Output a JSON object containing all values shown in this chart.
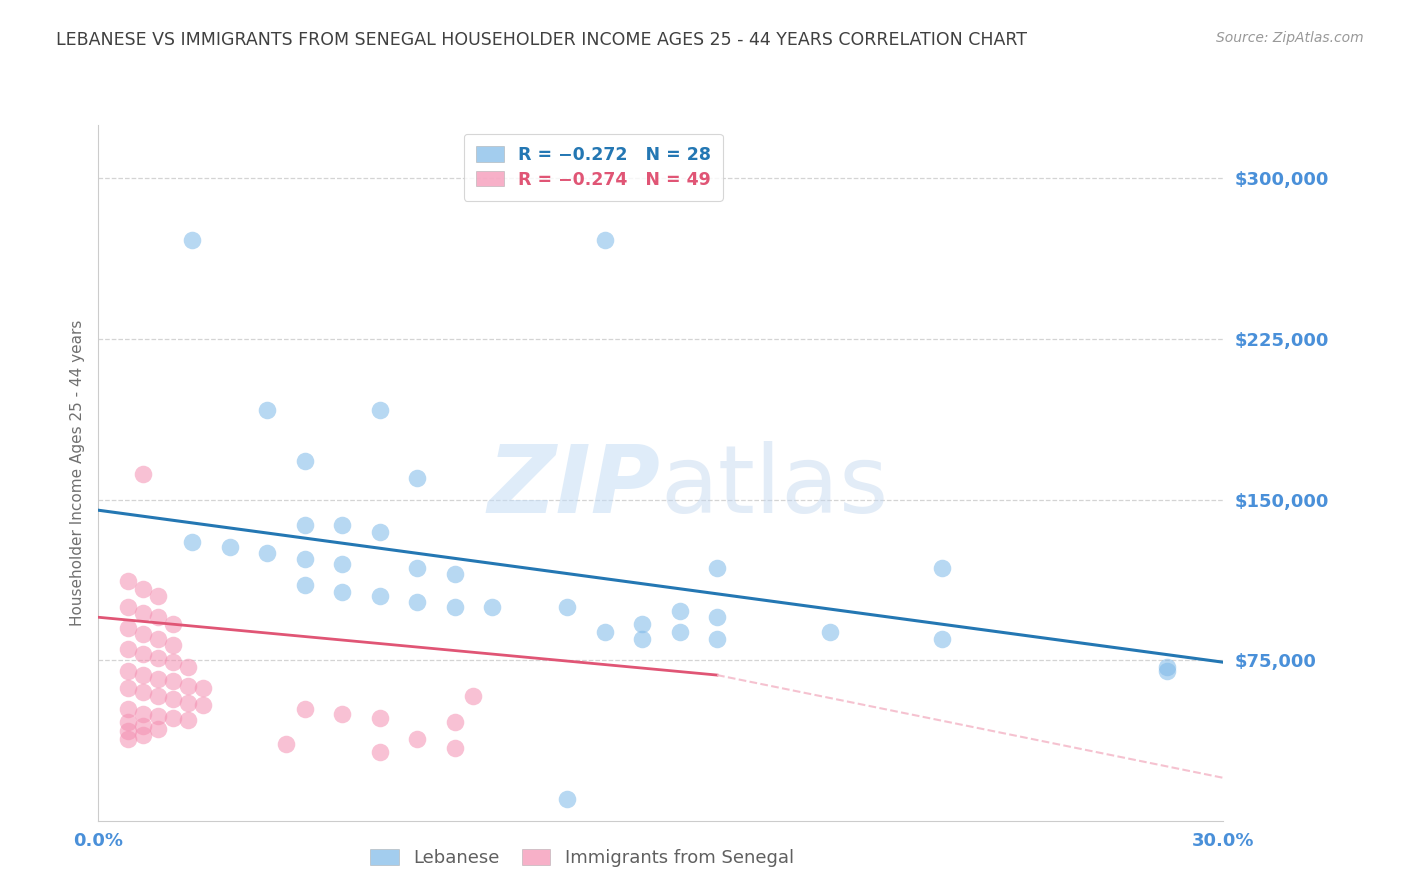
{
  "title": "LEBANESE VS IMMIGRANTS FROM SENEGAL HOUSEHOLDER INCOME AGES 25 - 44 YEARS CORRELATION CHART",
  "source": "Source: ZipAtlas.com",
  "ylabel": "Householder Income Ages 25 - 44 years",
  "ylim": [
    0,
    325000
  ],
  "xlim": [
    0.0,
    0.3
  ],
  "yticks": [
    75000,
    150000,
    225000,
    300000
  ],
  "ytick_labels": [
    "$75,000",
    "$150,000",
    "$225,000",
    "$300,000"
  ],
  "xticks": [
    0.0,
    0.05,
    0.1,
    0.15,
    0.2,
    0.25,
    0.3
  ],
  "blue_color": "#7db8e8",
  "pink_color": "#f48fb1",
  "blue_line_color": "#2477b3",
  "pink_line_color": "#e05575",
  "pink_dashed_color": "#f4b8c8",
  "background_color": "#ffffff",
  "grid_color": "#d0d0d0",
  "title_color": "#404040",
  "ylabel_color": "#707070",
  "axis_label_color": "#4a90d9",
  "lebanese_points": [
    [
      0.025,
      271000
    ],
    [
      0.135,
      271000
    ],
    [
      0.045,
      192000
    ],
    [
      0.075,
      192000
    ],
    [
      0.055,
      168000
    ],
    [
      0.085,
      160000
    ],
    [
      0.065,
      138000
    ],
    [
      0.075,
      135000
    ],
    [
      0.055,
      138000
    ],
    [
      0.025,
      130000
    ],
    [
      0.035,
      128000
    ],
    [
      0.045,
      125000
    ],
    [
      0.055,
      122000
    ],
    [
      0.065,
      120000
    ],
    [
      0.085,
      118000
    ],
    [
      0.095,
      115000
    ],
    [
      0.055,
      110000
    ],
    [
      0.065,
      107000
    ],
    [
      0.075,
      105000
    ],
    [
      0.085,
      102000
    ],
    [
      0.095,
      100000
    ],
    [
      0.105,
      100000
    ],
    [
      0.125,
      100000
    ],
    [
      0.165,
      118000
    ],
    [
      0.155,
      98000
    ],
    [
      0.165,
      95000
    ],
    [
      0.145,
      92000
    ],
    [
      0.225,
      118000
    ],
    [
      0.195,
      88000
    ],
    [
      0.225,
      85000
    ],
    [
      0.285,
      72000
    ],
    [
      0.285,
      70000
    ],
    [
      0.135,
      88000
    ],
    [
      0.145,
      85000
    ],
    [
      0.155,
      88000
    ],
    [
      0.165,
      85000
    ],
    [
      0.125,
      10000
    ]
  ],
  "senegal_points": [
    [
      0.012,
      162000
    ],
    [
      0.008,
      112000
    ],
    [
      0.012,
      108000
    ],
    [
      0.016,
      105000
    ],
    [
      0.008,
      100000
    ],
    [
      0.012,
      97000
    ],
    [
      0.016,
      95000
    ],
    [
      0.02,
      92000
    ],
    [
      0.008,
      90000
    ],
    [
      0.012,
      87000
    ],
    [
      0.016,
      85000
    ],
    [
      0.02,
      82000
    ],
    [
      0.008,
      80000
    ],
    [
      0.012,
      78000
    ],
    [
      0.016,
      76000
    ],
    [
      0.02,
      74000
    ],
    [
      0.024,
      72000
    ],
    [
      0.008,
      70000
    ],
    [
      0.012,
      68000
    ],
    [
      0.016,
      66000
    ],
    [
      0.02,
      65000
    ],
    [
      0.024,
      63000
    ],
    [
      0.028,
      62000
    ],
    [
      0.008,
      62000
    ],
    [
      0.012,
      60000
    ],
    [
      0.016,
      58000
    ],
    [
      0.02,
      57000
    ],
    [
      0.024,
      55000
    ],
    [
      0.028,
      54000
    ],
    [
      0.008,
      52000
    ],
    [
      0.012,
      50000
    ],
    [
      0.016,
      49000
    ],
    [
      0.02,
      48000
    ],
    [
      0.024,
      47000
    ],
    [
      0.008,
      46000
    ],
    [
      0.012,
      44000
    ],
    [
      0.016,
      43000
    ],
    [
      0.008,
      42000
    ],
    [
      0.012,
      40000
    ],
    [
      0.008,
      38000
    ],
    [
      0.055,
      52000
    ],
    [
      0.065,
      50000
    ],
    [
      0.075,
      48000
    ],
    [
      0.095,
      46000
    ],
    [
      0.05,
      36000
    ],
    [
      0.1,
      58000
    ],
    [
      0.085,
      38000
    ],
    [
      0.095,
      34000
    ],
    [
      0.075,
      32000
    ]
  ],
  "blue_trendline": [
    [
      0.0,
      145000
    ],
    [
      0.3,
      74000
    ]
  ],
  "pink_trendline_solid": [
    [
      0.0,
      95000
    ],
    [
      0.165,
      68000
    ]
  ],
  "pink_trendline_dashed": [
    [
      0.165,
      68000
    ],
    [
      0.3,
      20000
    ]
  ]
}
